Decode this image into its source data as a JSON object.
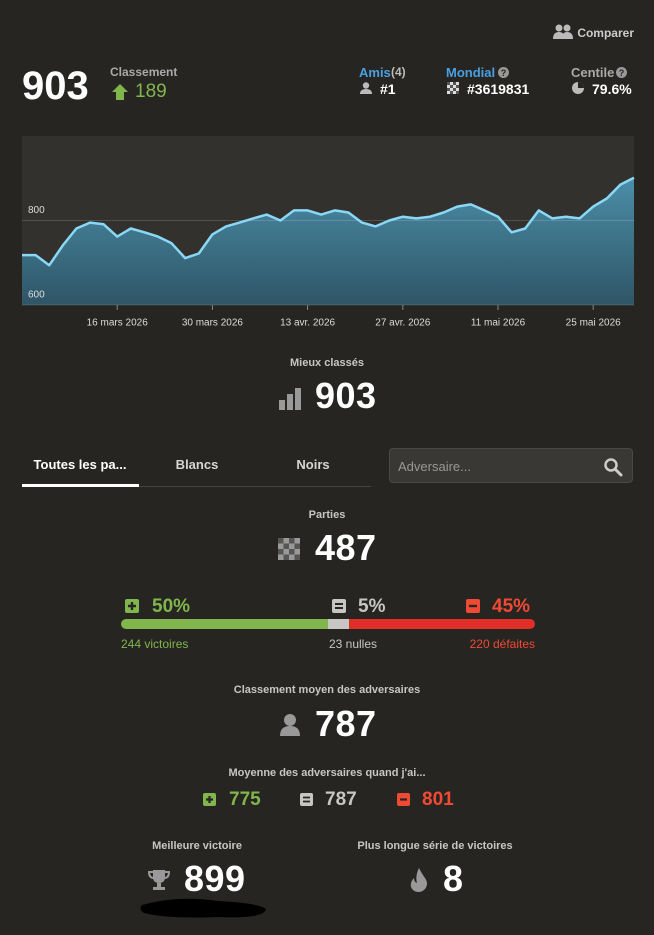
{
  "header": {
    "compare": "Comparer",
    "rating": "903",
    "rating_label": "Classement",
    "rating_change": "189",
    "friends": {
      "label": "Amis",
      "count": "(4)",
      "rank": "#1"
    },
    "global": {
      "label": "Mondial",
      "rank": "#3619831"
    },
    "percentile": {
      "label": "Centile",
      "value": "79.6%"
    }
  },
  "chart_data": {
    "type": "area",
    "color": "#8ad8f5",
    "grid": true,
    "x": [
      "2026-03-02",
      "2026-03-04",
      "2026-03-06",
      "2026-03-08",
      "2026-03-10",
      "2026-03-12",
      "2026-03-14",
      "2026-03-16",
      "2026-03-18",
      "2026-03-20",
      "2026-03-22",
      "2026-03-24",
      "2026-03-26",
      "2026-03-28",
      "2026-03-30",
      "2026-04-01",
      "2026-04-03",
      "2026-04-05",
      "2026-04-07",
      "2026-04-09",
      "2026-04-11",
      "2026-04-13",
      "2026-04-15",
      "2026-04-17",
      "2026-04-19",
      "2026-04-21",
      "2026-04-23",
      "2026-04-25",
      "2026-04-27",
      "2026-04-29",
      "2026-05-01",
      "2026-05-03",
      "2026-05-05",
      "2026-05-07",
      "2026-05-09",
      "2026-05-11",
      "2026-05-13",
      "2026-05-15",
      "2026-05-17",
      "2026-05-19",
      "2026-05-21",
      "2026-05-23",
      "2026-05-25",
      "2026-05-27",
      "2026-05-29",
      "2026-05-31"
    ],
    "values": [
      718,
      718,
      694,
      741,
      781,
      795,
      791,
      762,
      781,
      772,
      762,
      746,
      711,
      722,
      767,
      786,
      795,
      805,
      814,
      800,
      824,
      824,
      814,
      824,
      819,
      795,
      786,
      800,
      809,
      805,
      809,
      819,
      833,
      838,
      824,
      809,
      772,
      781,
      824,
      805,
      809,
      805,
      833,
      852,
      885,
      901
    ],
    "xlim": [
      "2026-03-02",
      "2026-05-31"
    ],
    "xticks": [
      {
        "value": "2026-03-16",
        "label": "16 mars 2026"
      },
      {
        "value": "2026-03-30",
        "label": "30 mars 2026"
      },
      {
        "value": "2026-04-13",
        "label": "13 avr. 2026"
      },
      {
        "value": "2026-04-27",
        "label": "27 avr. 2026"
      },
      {
        "value": "2026-05-11",
        "label": "11 mai 2026"
      },
      {
        "value": "2026-05-25",
        "label": "25 mai 2026"
      }
    ],
    "ylim": [
      600,
      1000
    ],
    "yticks": [
      600,
      800
    ]
  },
  "top_rated": {
    "label": "Mieux classés",
    "value": "903"
  },
  "tabs": [
    "Toutes les pa...",
    "Blancs",
    "Noirs"
  ],
  "search": {
    "placeholder": "Adversaire..."
  },
  "games": {
    "label": "Parties",
    "total": "487",
    "results": [
      {
        "percent": "50%",
        "count": "244 victoires",
        "color": "#81b64c"
      },
      {
        "percent": "5%",
        "count": "23 nulles",
        "color": "#c8c6c3"
      },
      {
        "percent": "45%",
        "count": "220 défaites",
        "color": "#e02f26"
      }
    ]
  },
  "opponents": {
    "label": "Classement moyen des adversaires",
    "value": "787"
  },
  "opponents_when": {
    "label": "Moyenne des adversaires quand j'ai...",
    "values": [
      "775",
      "787",
      "801"
    ]
  },
  "best_win": {
    "label": "Meilleure victoire",
    "value": "899"
  },
  "streak": {
    "label": "Plus longue série de victoires",
    "value": "8"
  }
}
